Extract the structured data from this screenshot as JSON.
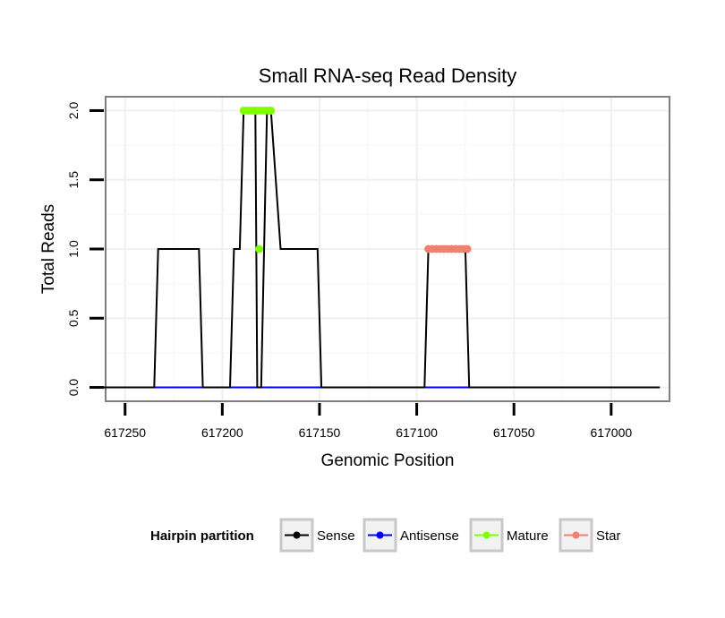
{
  "chart_data": {
    "type": "line",
    "title": "Small RNA-seq Read Density",
    "xlabel": "Genomic Position",
    "ylabel": "Total Reads",
    "x_reversed": true,
    "xlim": [
      617260,
      616970
    ],
    "ylim": [
      -0.1,
      2.1
    ],
    "x_ticks": [
      617250,
      617200,
      617150,
      617100,
      617050,
      617000
    ],
    "x_tick_labels": [
      "617250",
      "617200",
      "617150",
      "617100",
      "617050",
      "617000"
    ],
    "y_ticks": [
      0.0,
      0.5,
      1.0,
      1.5,
      2.0
    ],
    "y_tick_labels": [
      "0.0",
      "0.5",
      "1.0",
      "1.5",
      "2.0"
    ],
    "grid": true,
    "legend": {
      "title": "Hairpin partition",
      "position": "bottom",
      "entries": [
        "Sense",
        "Antisense",
        "Mature",
        "Star"
      ]
    },
    "series": [
      {
        "name": "Sense",
        "color": "#000000",
        "style": "step-line",
        "x": [
          617261,
          617235,
          617233,
          617212,
          617210,
          617196,
          617194,
          617191,
          617189,
          617183,
          617182,
          617180,
          617177,
          617175,
          617170,
          617168,
          617151,
          617149,
          617096,
          617094,
          617075,
          617073,
          616975
        ],
        "y": [
          0,
          0,
          1,
          1,
          0,
          0,
          1,
          1,
          2,
          2,
          0,
          0,
          2,
          2,
          1,
          1,
          1,
          0,
          0,
          1,
          1,
          0,
          0
        ]
      },
      {
        "name": "Antisense",
        "color": "#0000ff",
        "style": "line",
        "x": [
          617261,
          616975
        ],
        "y": [
          0,
          0
        ]
      },
      {
        "name": "Mature",
        "color": "#7fff00",
        "style": "points",
        "x": [
          617189,
          617187,
          617185,
          617183,
          617182,
          617180,
          617178,
          617176,
          617175
        ],
        "y": [
          2,
          2,
          2,
          2,
          2,
          2,
          2,
          2,
          2
        ],
        "extra_points": [
          {
            "x": 617181,
            "y": 1
          }
        ]
      },
      {
        "name": "Star",
        "color": "#f08070",
        "style": "points",
        "x": [
          617094,
          617092,
          617090,
          617088,
          617086,
          617084,
          617082,
          617080,
          617078,
          617076,
          617074
        ],
        "y": [
          1,
          1,
          1,
          1,
          1,
          1,
          1,
          1,
          1,
          1,
          1
        ]
      }
    ]
  }
}
